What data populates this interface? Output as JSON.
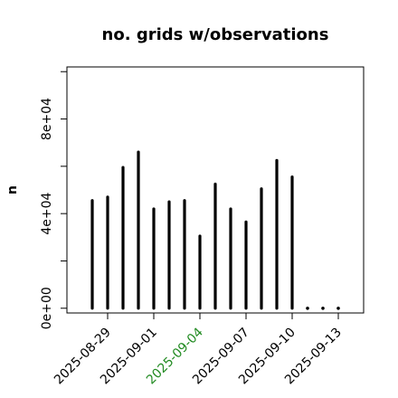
{
  "chart_data": {
    "type": "bar",
    "title": "no. grids w/observations",
    "ylabel": "n",
    "xlabel": "",
    "ylim": [
      -2000,
      102000
    ],
    "y_ticks": [
      0,
      20000,
      40000,
      60000,
      80000,
      100000
    ],
    "y_tick_labels": [
      "0e+00",
      "",
      "4e+04",
      "",
      "8e+04",
      ""
    ],
    "x": [
      "2025-08-28",
      "2025-08-29",
      "2025-08-30",
      "2025-08-31",
      "2025-09-01",
      "2025-09-02",
      "2025-09-03",
      "2025-09-04",
      "2025-09-05",
      "2025-09-06",
      "2025-09-07",
      "2025-09-08",
      "2025-09-09",
      "2025-09-10",
      "2025-09-11",
      "2025-09-12",
      "2025-09-13"
    ],
    "values": [
      45500,
      47000,
      59500,
      66000,
      42000,
      45000,
      45500,
      30500,
      52500,
      42000,
      36500,
      50500,
      62500,
      55500,
      0,
      0,
      0
    ],
    "x_tick_labels": [
      "2025-08-29",
      "2025-09-01",
      "2025-09-04",
      "2025-09-07",
      "2025-09-10",
      "2025-09-13"
    ],
    "x_tick_dates": [
      "2025-08-29",
      "2025-09-01",
      "2025-09-04",
      "2025-09-07",
      "2025-09-10",
      "2025-09-13"
    ],
    "x_tick_colors": [
      "#000000",
      "#000000",
      "#228b22",
      "#000000",
      "#000000",
      "#000000"
    ],
    "bar_color": "#000000",
    "grid": false,
    "legend": "none"
  }
}
